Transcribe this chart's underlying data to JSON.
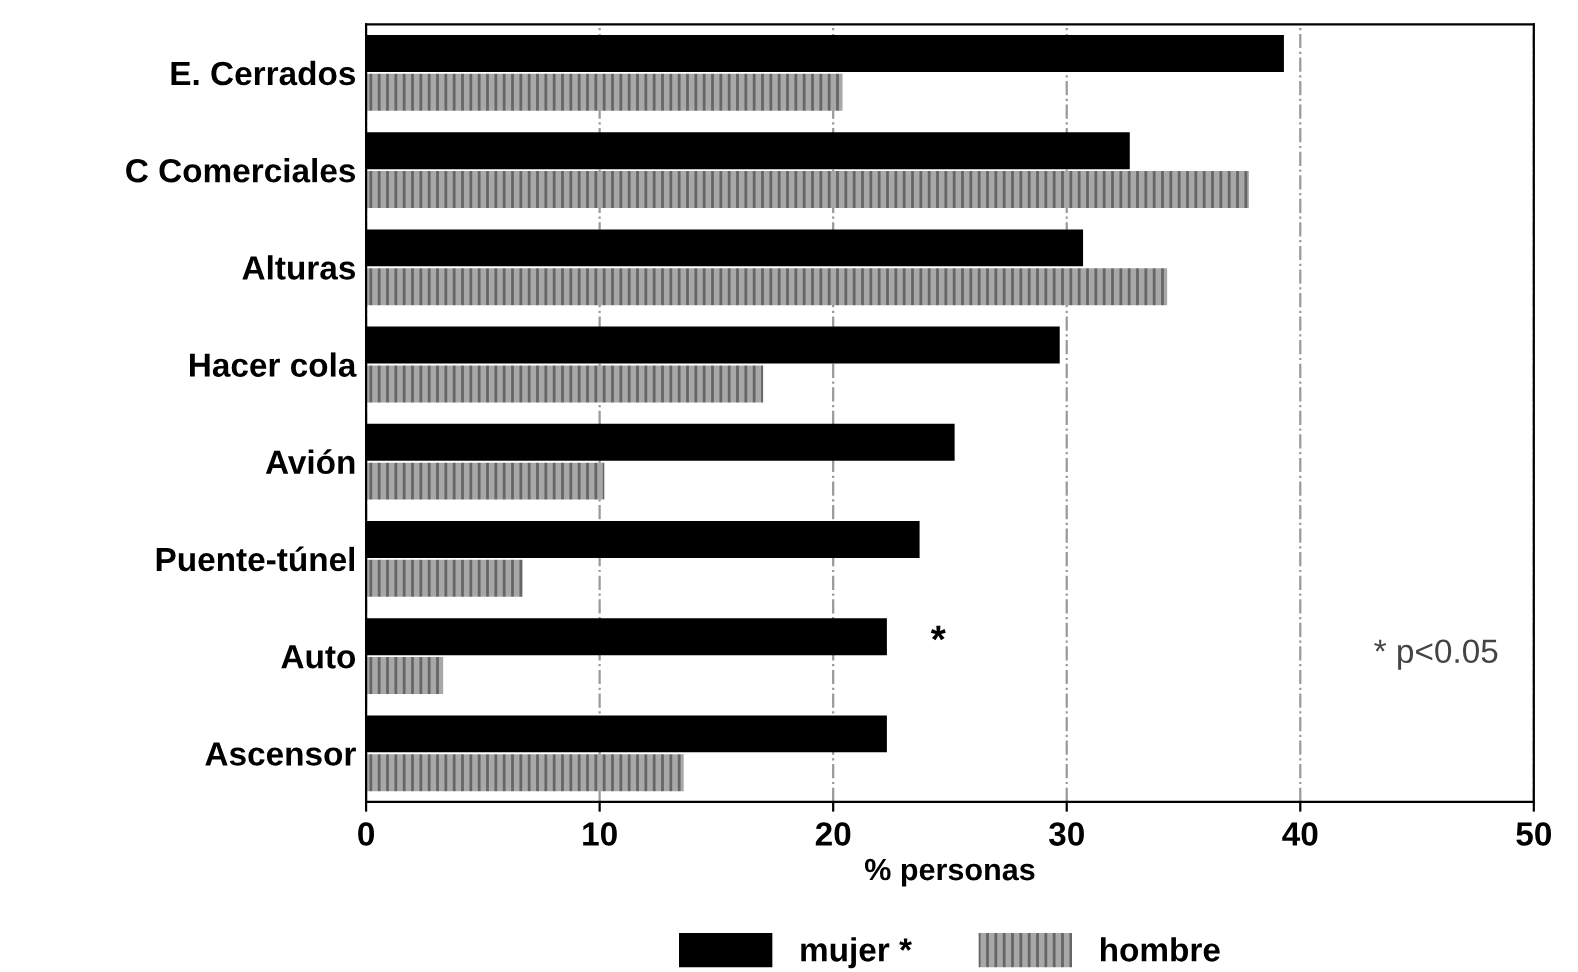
{
  "chart_data": {
    "type": "bar",
    "orientation": "horizontal",
    "categories": [
      "E. Cerrados",
      "C Comerciales",
      "Alturas",
      "Hacer cola",
      "Avión",
      "Puente-túnel",
      "Auto",
      "Ascensor"
    ],
    "series": [
      {
        "name": "mujer *",
        "color": "#000000",
        "values": [
          39.3,
          32.7,
          30.7,
          29.7,
          25.2,
          23.7,
          22.3,
          22.3
        ]
      },
      {
        "name": "hombre",
        "color": "#a8a8a8",
        "values": [
          20.4,
          37.8,
          34.3,
          17.0,
          10.2,
          6.7,
          3.3,
          13.6
        ]
      }
    ],
    "xlabel": "% personas",
    "xlim": [
      0,
      50
    ],
    "xticks": [
      0,
      10,
      20,
      30,
      40,
      50
    ],
    "grid": "x",
    "legend": "bottom",
    "annotations": [
      "*",
      "* p<0.05"
    ]
  }
}
